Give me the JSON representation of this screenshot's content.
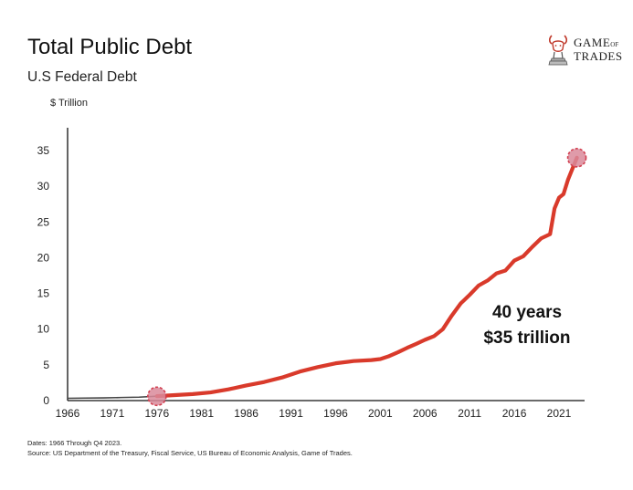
{
  "header": {
    "title": "Total Public Debt",
    "subtitle": "U.S Federal Debt"
  },
  "logo": {
    "icon": "bull-knight-icon",
    "line1_main": "GAME",
    "line1_small": "OF",
    "line2": "TRADES"
  },
  "footer": {
    "dates": "Dates: 1966 Through Q4 2023.",
    "source": "Source: US Department of the Treasury, Fiscal Service, US Bureau of Economic Analysis, Game of Trades."
  },
  "colors": {
    "line": "#d93a2b",
    "marker_fill": "#d9899a",
    "marker_stroke": "#d23f50",
    "axis": "#111111"
  },
  "chart_data": {
    "type": "line",
    "ylabel": "$ Trillion",
    "xlim": [
      1966,
      2024
    ],
    "ylim": [
      0,
      35
    ],
    "x_ticks": [
      1966,
      1971,
      1976,
      1981,
      1986,
      1991,
      1996,
      2001,
      2006,
      2011,
      2016,
      2021
    ],
    "y_ticks": [
      0,
      5,
      10,
      15,
      20,
      25,
      30,
      35
    ],
    "grid": false,
    "annotation": [
      "40 years",
      "$35 trillion"
    ],
    "highlight_points": [
      {
        "x": 1976,
        "y": 0.6
      },
      {
        "x": 2023,
        "y": 34.0
      }
    ],
    "series": [
      {
        "x": [
          1966,
          1968,
          1970,
          1972,
          1974,
          1976,
          1978,
          1980,
          1982,
          1984,
          1986,
          1988,
          1990,
          1992,
          1994,
          1996,
          1998,
          2000,
          2001,
          2002,
          2003,
          2004,
          2005,
          2006,
          2007,
          2008,
          2009,
          2010,
          2011,
          2012,
          2013,
          2014,
          2015,
          2016,
          2017,
          2018,
          2019,
          2020,
          2020.5,
          2021,
          2021.5,
          2022,
          2023
        ],
        "y": [
          0.32,
          0.35,
          0.37,
          0.43,
          0.48,
          0.62,
          0.77,
          0.91,
          1.14,
          1.57,
          2.12,
          2.6,
          3.23,
          4.06,
          4.69,
          5.22,
          5.53,
          5.67,
          5.81,
          6.23,
          6.78,
          7.38,
          7.93,
          8.51,
          9.01,
          10.0,
          11.9,
          13.6,
          14.8,
          16.1,
          16.8,
          17.8,
          18.2,
          19.6,
          20.2,
          21.5,
          22.7,
          23.3,
          26.9,
          28.4,
          28.9,
          30.9,
          34.0
        ]
      }
    ]
  }
}
